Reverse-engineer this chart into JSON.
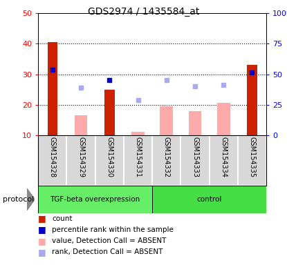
{
  "title": "GDS2974 / 1435584_at",
  "samples": [
    "GSM154328",
    "GSM154329",
    "GSM154330",
    "GSM154331",
    "GSM154332",
    "GSM154333",
    "GSM154334",
    "GSM154335"
  ],
  "red_bars": [
    40.5,
    0,
    25.0,
    0,
    0,
    0,
    0,
    33.0
  ],
  "pink_bars": [
    0,
    16.5,
    0,
    11.0,
    19.5,
    18.0,
    20.5,
    0
  ],
  "blue_squares": [
    31.5,
    0,
    28.0,
    0,
    0,
    0,
    0,
    30.5
  ],
  "light_blue_squares": [
    0,
    25.5,
    0,
    21.5,
    28.0,
    26.0,
    26.5,
    0
  ],
  "group1_label": "TGF-beta overexpression",
  "group2_label": "control",
  "group1_color": "#66ee66",
  "group2_color": "#44dd44",
  "left_yticks": [
    10,
    20,
    30,
    40,
    50
  ],
  "right_yticks": [
    0,
    25,
    50,
    75,
    100
  ],
  "right_yticklabels": [
    "0",
    "25",
    "50",
    "75",
    "100%"
  ],
  "ylim_left": [
    10,
    50
  ],
  "ylim_right": [
    0,
    100
  ],
  "legend_labels": [
    "count",
    "percentile rank within the sample",
    "value, Detection Call = ABSENT",
    "rank, Detection Call = ABSENT"
  ],
  "legend_colors": [
    "#cc2200",
    "#0000cc",
    "#ffaaaa",
    "#aaaaee"
  ],
  "protocol_label": "protocol",
  "bar_color_red": "#cc2200",
  "bar_color_pink": "#ffaaaa",
  "square_color_blue": "#0000cc",
  "square_color_lblue": "#aaaaee",
  "cell_color": "#d8d8d8",
  "title_fontsize": 10
}
